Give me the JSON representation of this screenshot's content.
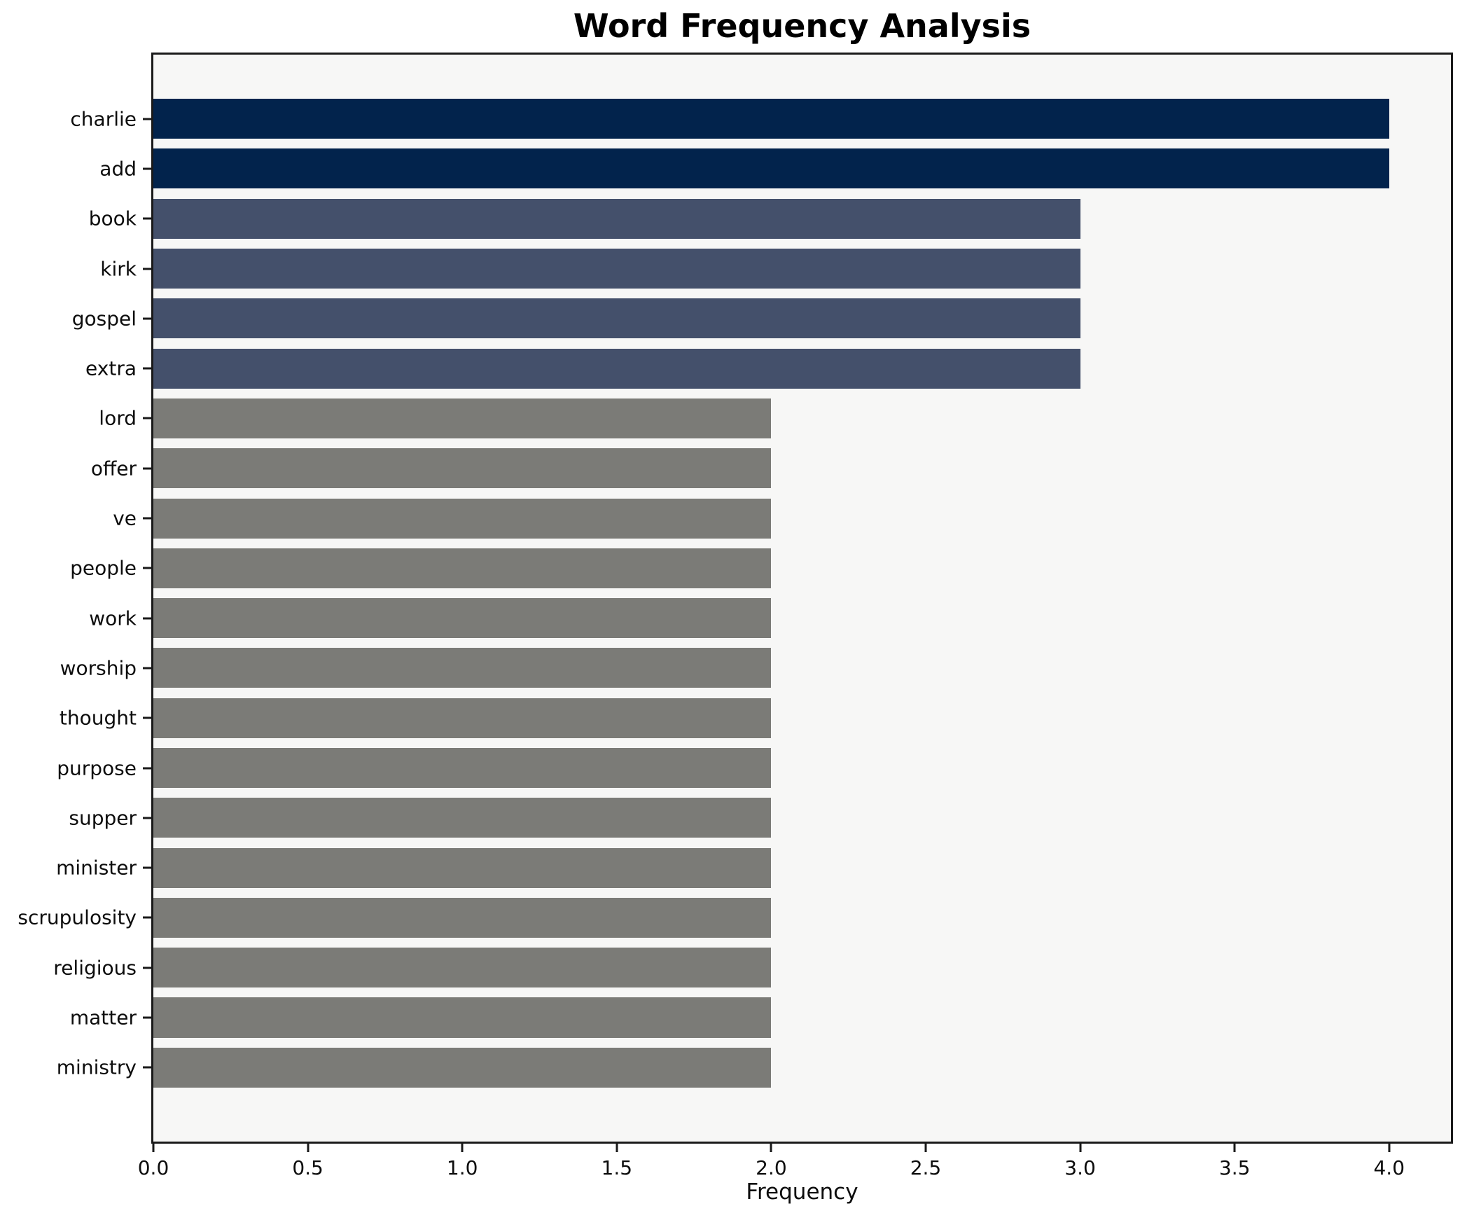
{
  "title": "Word Frequency Analysis",
  "chart_data": {
    "type": "bar",
    "orientation": "horizontal",
    "title": "Word Frequency Analysis",
    "xlabel": "Frequency",
    "ylabel": "",
    "categories": [
      "charlie",
      "add",
      "book",
      "kirk",
      "gospel",
      "extra",
      "lord",
      "offer",
      "ve",
      "people",
      "work",
      "worship",
      "thought",
      "purpose",
      "supper",
      "minister",
      "scrupulosity",
      "religious",
      "matter",
      "ministry"
    ],
    "values": [
      4,
      4,
      3,
      3,
      3,
      3,
      2,
      2,
      2,
      2,
      2,
      2,
      2,
      2,
      2,
      2,
      2,
      2,
      2,
      2
    ],
    "xlim": [
      0,
      4.2
    ],
    "x_ticks": [
      "0.0",
      "0.5",
      "1.0",
      "1.5",
      "2.0",
      "2.5",
      "3.0",
      "3.5",
      "4.0"
    ],
    "grid": false,
    "legend": null,
    "value_colors": {
      "4": "#02234c",
      "3": "#44506b",
      "2": "#7b7b77"
    },
    "plot_background": "#f7f7f6",
    "figure_background": "#ffffff",
    "spine_color": "#1a1a1a"
  }
}
